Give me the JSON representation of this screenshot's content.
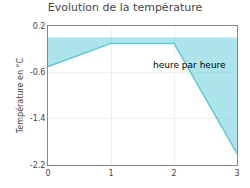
{
  "chart_data": {
    "type": "area",
    "title": "Evolution de la température",
    "xlabel": "heure par heure",
    "ylabel": "Température en °C",
    "x": [
      0,
      1,
      2,
      3
    ],
    "values": [
      -0.5,
      -0.1,
      -0.1,
      -2.0
    ],
    "color": "#5bc8d8",
    "xlim": [
      0,
      3
    ],
    "ylim": [
      -2.2,
      0.2
    ],
    "xticks": [
      0,
      1,
      2,
      3
    ],
    "yticks": [
      0.2,
      -0.6,
      -1.4,
      -2.2
    ],
    "grid": true
  }
}
